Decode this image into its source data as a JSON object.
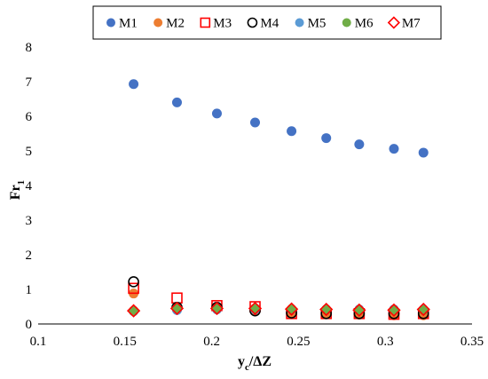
{
  "chart_data": {
    "type": "scatter",
    "title": "",
    "xlabel": {
      "main": "y",
      "sub": "c",
      "rest": "/ΔZ"
    },
    "ylabel": {
      "main": "Fr",
      "sub": "1"
    },
    "xlim": [
      0.1,
      0.35
    ],
    "ylim": [
      0,
      8
    ],
    "x_ticks": [
      "0.1",
      "0.15",
      "0.2",
      "0.25",
      "0.3",
      "0.35"
    ],
    "y_ticks": [
      "0",
      "1",
      "2",
      "3",
      "4",
      "5",
      "6",
      "7",
      "8"
    ],
    "grid": false,
    "legend_position": "top",
    "series": [
      {
        "name": "M1",
        "marker": "circle-filled",
        "color": "#4472C4",
        "x": [
          0.155,
          0.18,
          0.203,
          0.225,
          0.246,
          0.266,
          0.285,
          0.305,
          0.322
        ],
        "y": [
          6.93,
          6.4,
          6.08,
          5.82,
          5.57,
          5.37,
          5.19,
          5.06,
          4.95
        ]
      },
      {
        "name": "M2",
        "marker": "circle-filled",
        "color": "#ED7D31",
        "x": [
          0.155,
          0.18,
          0.203,
          0.225,
          0.246,
          0.266,
          0.285,
          0.305,
          0.322
        ],
        "y": [
          0.88,
          0.42,
          0.45,
          0.37,
          0.28,
          0.28,
          0.27,
          0.25,
          0.25
        ]
      },
      {
        "name": "M3",
        "marker": "square-open",
        "color": "#FF0000",
        "x": [
          0.155,
          0.18,
          0.203,
          0.225,
          0.246,
          0.266,
          0.285,
          0.305,
          0.322
        ],
        "y": [
          1.03,
          0.75,
          0.53,
          0.5,
          0.3,
          0.3,
          0.3,
          0.28,
          0.3
        ]
      },
      {
        "name": "M4",
        "marker": "circle-open",
        "color": "#000000",
        "x": [
          0.155,
          0.18,
          0.203,
          0.225,
          0.246,
          0.266,
          0.285,
          0.305,
          0.322
        ],
        "y": [
          1.22,
          0.48,
          0.48,
          0.38,
          0.32,
          0.3,
          0.3,
          0.3,
          0.3
        ]
      },
      {
        "name": "M5",
        "marker": "circle-filled",
        "color": "#5B9BD5",
        "x": [
          0.155,
          0.18,
          0.203,
          0.225,
          0.246,
          0.266,
          0.285,
          0.305,
          0.322
        ],
        "y": [
          0.37,
          0.4,
          0.42,
          0.42,
          0.42,
          0.42,
          0.42,
          0.42,
          0.42
        ]
      },
      {
        "name": "M6",
        "marker": "circle-filled",
        "color": "#70AD47",
        "x": [
          0.155,
          0.18,
          0.203,
          0.225,
          0.246,
          0.266,
          0.285,
          0.305,
          0.322
        ],
        "y": [
          0.38,
          0.45,
          0.45,
          0.45,
          0.43,
          0.42,
          0.4,
          0.4,
          0.4
        ]
      },
      {
        "name": "M7",
        "marker": "diamond-open",
        "color": "#FF0000",
        "x": [
          0.155,
          0.18,
          0.203,
          0.225,
          0.246,
          0.266,
          0.285,
          0.305,
          0.322
        ],
        "y": [
          0.38,
          0.45,
          0.45,
          0.45,
          0.43,
          0.42,
          0.4,
          0.4,
          0.42
        ]
      }
    ]
  }
}
